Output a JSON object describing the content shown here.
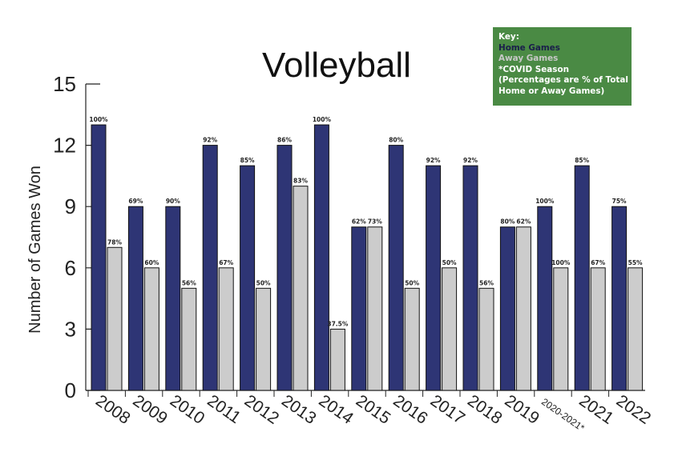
{
  "chart_data": {
    "type": "bar",
    "title": "Volleyball",
    "ylabel": "Number of Games Won",
    "xlabel": "",
    "ylim": [
      0,
      15
    ],
    "yticks": [
      0,
      3,
      6,
      9,
      12,
      15
    ],
    "grid": false,
    "categories": [
      "2008",
      "2009",
      "2010",
      "2011",
      "2012",
      "2013",
      "2014",
      "2015",
      "2016",
      "2017",
      "2018",
      "2019",
      "2020-2021*",
      "2021",
      "2022"
    ],
    "series": [
      {
        "name": "Home Games",
        "values": [
          13,
          9,
          9,
          12,
          11,
          12,
          13,
          8,
          12,
          11,
          11,
          8,
          9,
          11,
          9
        ],
        "labels": [
          "100%",
          "69%",
          "90%",
          "92%",
          "85%",
          "86%",
          "100%",
          "62%",
          "80%",
          "92%",
          "92%",
          "80%",
          "100%",
          "85%",
          "75%"
        ],
        "color": "#2e3575"
      },
      {
        "name": "Away Games",
        "values": [
          7,
          6,
          5,
          6,
          5,
          10,
          3,
          8,
          5,
          6,
          5,
          8,
          6,
          6,
          6
        ],
        "labels": [
          "78%",
          "60%",
          "56%",
          "67%",
          "50%",
          "83%",
          "37.5%",
          "73%",
          "50%",
          "50%",
          "56%",
          "62%",
          "100%",
          "67%",
          "55%"
        ],
        "color": "#cccccc"
      }
    ],
    "legend": {
      "placement": "top-right",
      "heading": "Key:",
      "home": "Home Games",
      "away": "Away Games",
      "covid": "*COVID Season",
      "note_line1": "(Percentages are % of Total",
      "note_line2": "Home or Away Games)",
      "background": "#4a8a44",
      "home_text_color": "#1a1f4a",
      "away_text_color": "#c8c8c8",
      "note_text_color": "#ffffff"
    }
  }
}
